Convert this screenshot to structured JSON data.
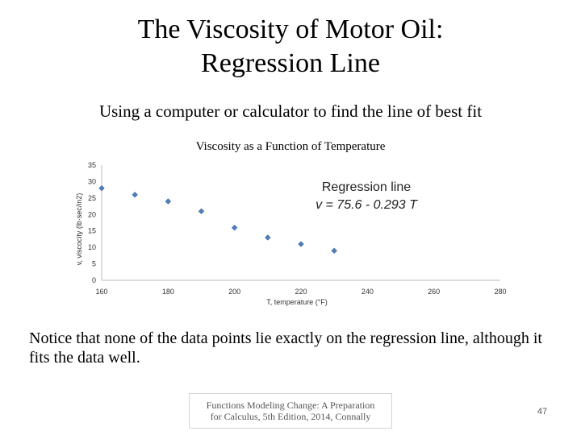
{
  "slide": {
    "title_line1": "The Viscosity of Motor Oil:",
    "title_line2": "Regression Line",
    "subtitle": "Using a computer or calculator to find the line of best fit",
    "note": "Notice that none of the data points lie exactly on the regression line, although it fits the data well.",
    "footer_line1": "Functions Modeling Change: A Preparation",
    "footer_line2": "for Calculus, 5th Edition, 2014, Connally",
    "page_number": "47"
  },
  "chart_data": {
    "type": "scatter",
    "title": "Viscosity as a Function of Temperature",
    "xlabel": "T, temperature (°F)",
    "ylabel": "v, viscocity (lb·sec/in2)",
    "xlim": [
      160,
      280
    ],
    "ylim": [
      0,
      35
    ],
    "xticks": [
      160,
      180,
      200,
      220,
      240,
      260,
      280
    ],
    "yticks": [
      0,
      5,
      10,
      15,
      20,
      25,
      30,
      35
    ],
    "grid": false,
    "legend": "none",
    "marker_color": "#4f81bd",
    "x": [
      160,
      170,
      180,
      190,
      200,
      210,
      220,
      230
    ],
    "y": [
      28,
      26,
      24,
      21,
      16,
      13,
      11,
      9
    ],
    "annotation_line1": "Regression line",
    "annotation_line2": "v = 75.6 - 0.293 T"
  }
}
